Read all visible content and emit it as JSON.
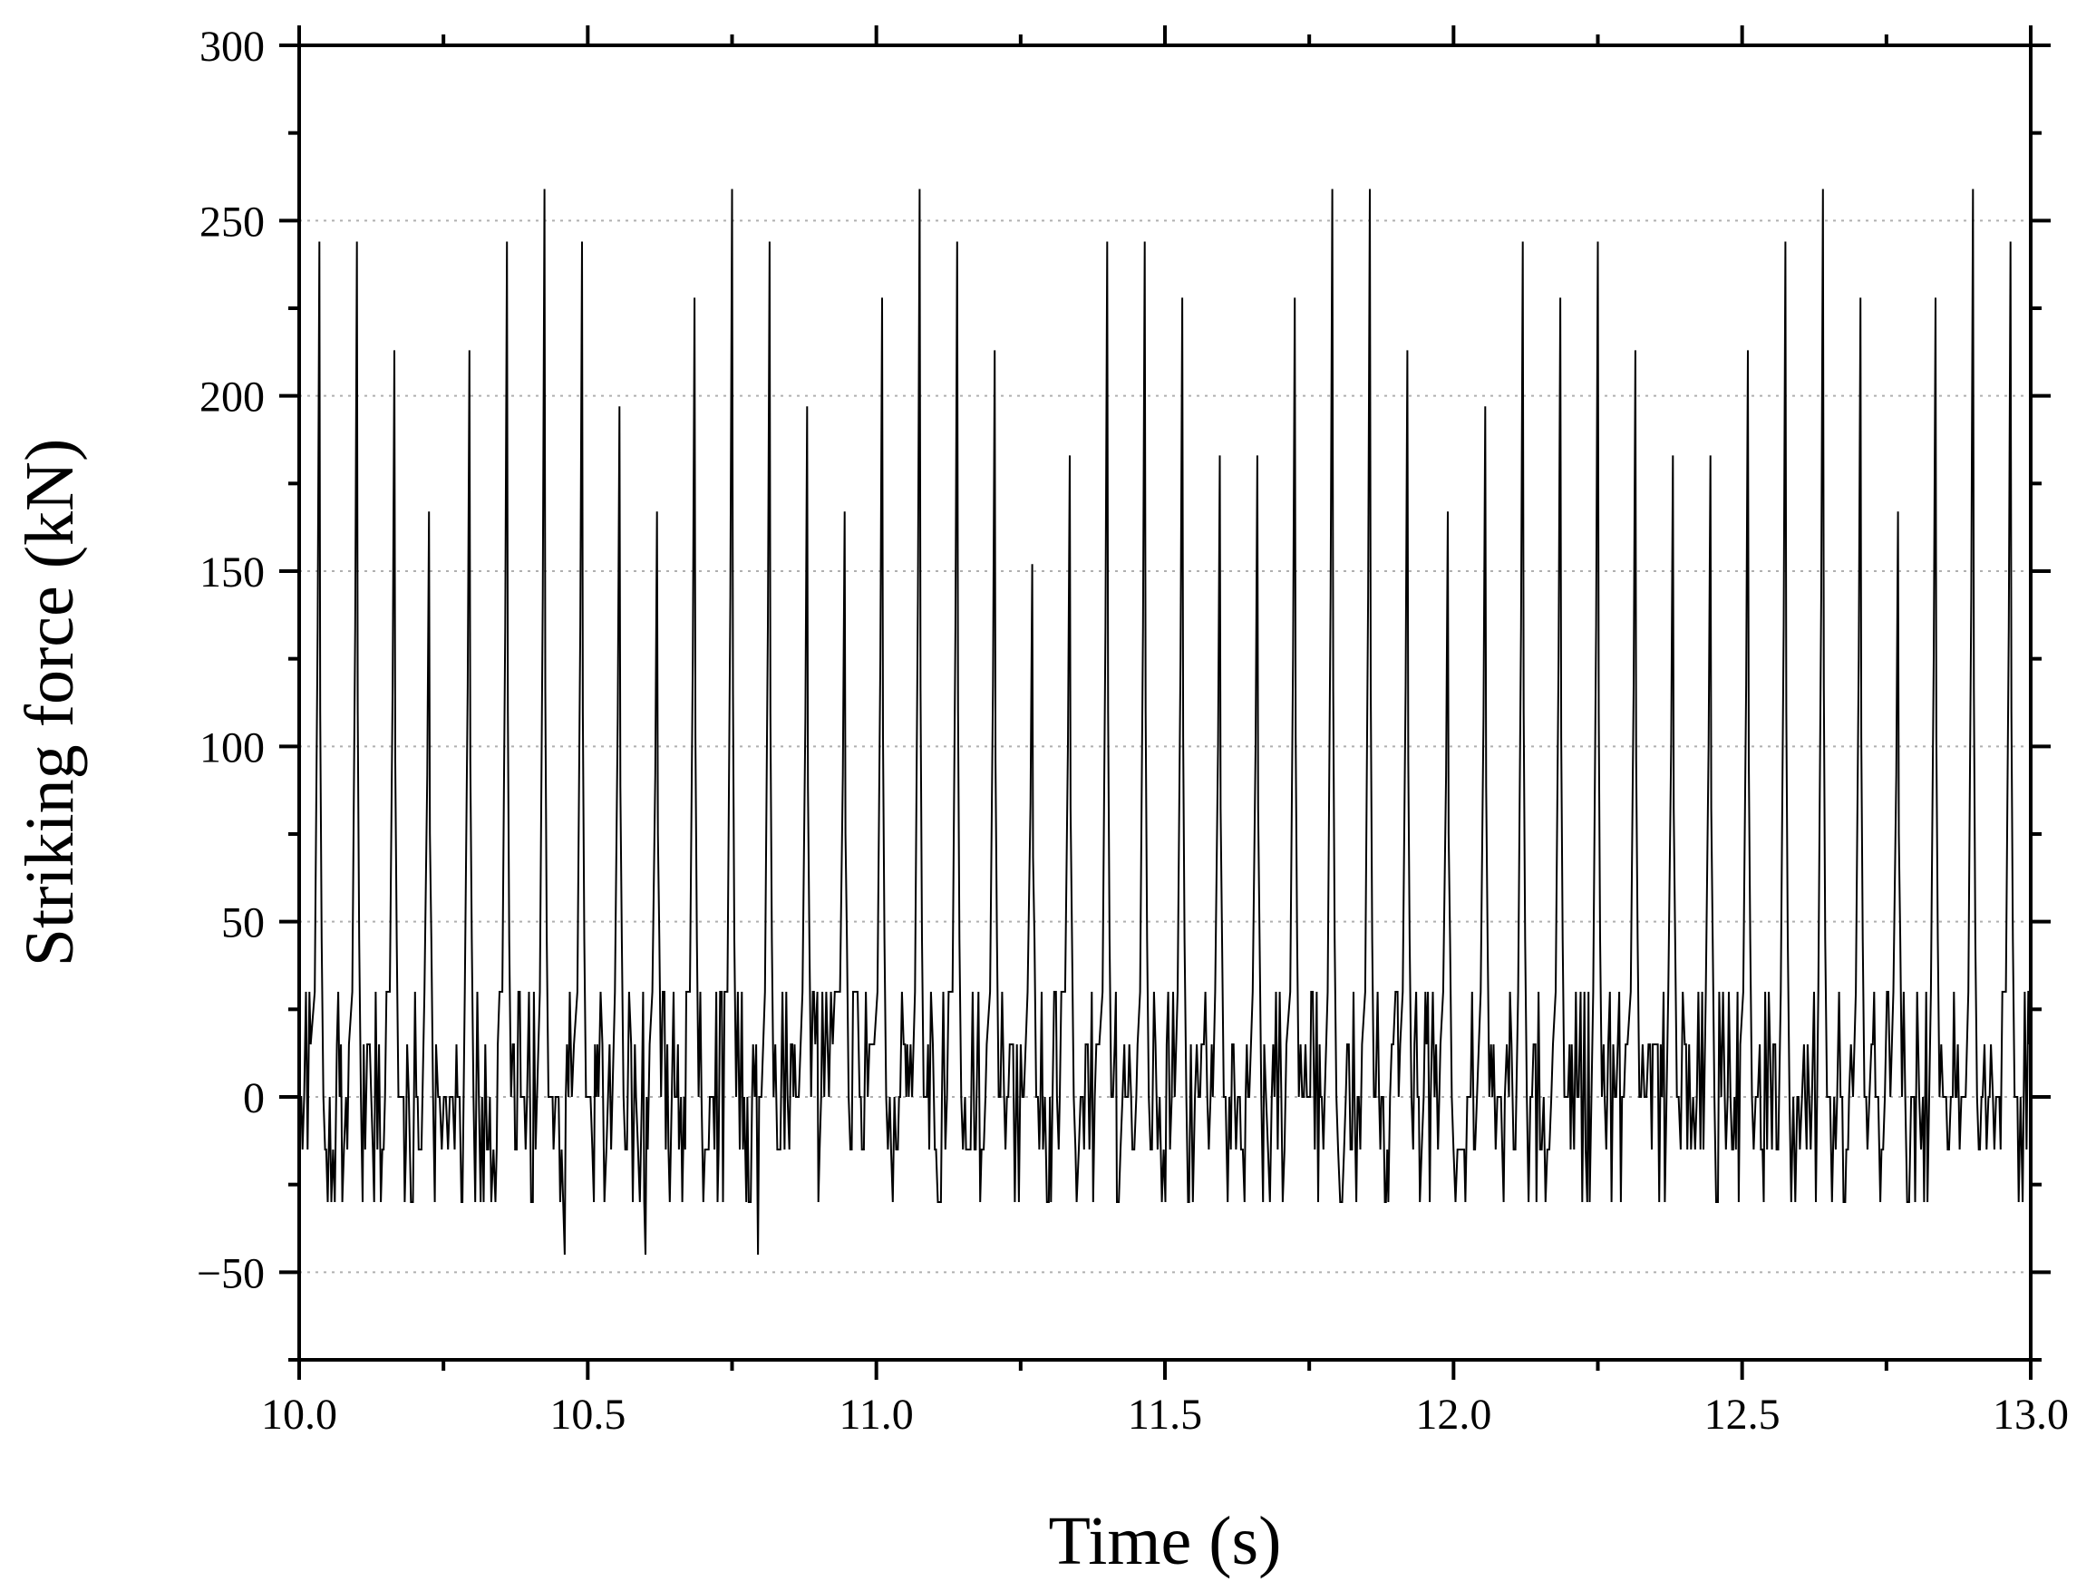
{
  "chart_data": {
    "type": "line",
    "title": "",
    "xlabel": "Time (s)",
    "ylabel": "Striking force (kN)",
    "xlim": [
      10.0,
      13.0
    ],
    "ylim": [
      -75,
      300
    ],
    "x_ticks": [
      10.0,
      10.5,
      11.0,
      11.5,
      12.0,
      12.5,
      13.0
    ],
    "x_tick_labels": [
      "10.0",
      "10.5",
      "11.0",
      "11.5",
      "12.0",
      "12.5",
      "13.0"
    ],
    "y_ticks": [
      -50,
      0,
      50,
      100,
      150,
      200,
      250,
      300
    ],
    "y_tick_labels": [
      "−50",
      "0",
      "50",
      "100",
      "150",
      "200",
      "250",
      "300"
    ],
    "grid": "dotted horizontal",
    "line_color": "#000000",
    "series": [
      {
        "peaks": {
          "t": [
            10.035,
            10.1,
            10.165,
            10.225,
            10.295,
            10.36,
            10.425,
            10.49,
            10.555,
            10.62,
            10.685,
            10.75,
            10.815,
            10.88,
            10.945,
            11.01,
            11.075,
            11.14,
            11.205,
            11.27,
            11.335,
            11.4,
            11.465,
            11.53,
            11.595,
            11.66,
            11.725,
            11.79,
            11.855,
            11.92,
            11.99,
            12.055,
            12.12,
            12.185,
            12.25,
            12.315,
            12.38,
            12.445,
            12.51,
            12.575,
            12.64,
            12.705,
            12.77,
            12.835,
            12.9,
            12.965
          ],
          "force": [
            244,
            244,
            213,
            167,
            213,
            244,
            259,
            244,
            197,
            167,
            228,
            259,
            244,
            197,
            167,
            228,
            259,
            244,
            213,
            152,
            183,
            244,
            244,
            228,
            183,
            183,
            228,
            259,
            259,
            213,
            167,
            197,
            244,
            228,
            244,
            213,
            183,
            183,
            213,
            244,
            259,
            228,
            167,
            228,
            259,
            244
          ]
        },
        "noise_levels": [
          -45,
          -30,
          -15,
          0,
          15,
          30,
          45
        ],
        "min_values": [
          {
            "t": 10.46,
            "force": -45
          },
          {
            "t": 10.6,
            "force": -45
          },
          {
            "t": 10.795,
            "force": -45
          }
        ]
      }
    ]
  }
}
